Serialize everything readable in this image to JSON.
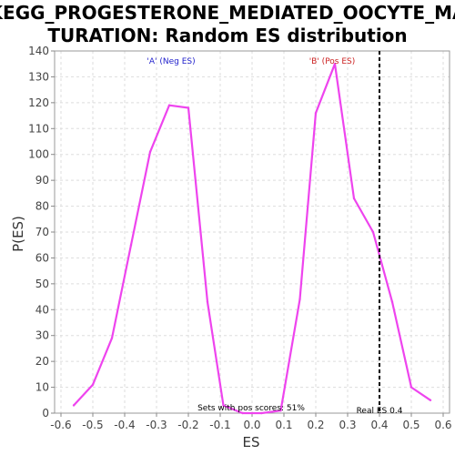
{
  "chart_data": {
    "type": "line",
    "title_lines": [
      "KEGG_PROGESTERONE_MEDIATED_OOCYTE_MA",
      "TURATION: Random ES distribution"
    ],
    "xlabel": "ES",
    "ylabel": "P(ES)",
    "xlim": [
      -0.62,
      0.62
    ],
    "ylim": [
      0,
      140
    ],
    "x_ticks": [
      -0.6,
      -0.5,
      -0.4,
      -0.3,
      -0.2,
      -0.1,
      0.0,
      0.1,
      0.2,
      0.3,
      0.4,
      0.5,
      0.6
    ],
    "y_ticks": [
      0,
      10,
      20,
      30,
      40,
      50,
      60,
      70,
      80,
      90,
      100,
      110,
      120,
      130,
      140
    ],
    "grid": true,
    "series": [
      {
        "color": "#ee44ee",
        "x": [
          -0.56,
          -0.5,
          -0.44,
          -0.38,
          -0.32,
          -0.26,
          -0.2,
          -0.14,
          -0.09,
          -0.03,
          0.03,
          0.09,
          0.15,
          0.2,
          0.26,
          0.32,
          0.38,
          0.44,
          0.5,
          0.56
        ],
        "y": [
          3,
          11,
          29,
          65,
          101,
          119,
          118,
          43,
          3,
          0,
          0,
          1,
          44,
          116,
          135,
          83,
          70,
          43,
          10,
          5
        ]
      }
    ],
    "reference_line": {
      "x": 0.4,
      "color": "#000000",
      "label": "Real ES 0.4"
    },
    "annotations": {
      "neg_label": "'A' (Neg ES)",
      "neg_color": "#2222cc",
      "pos_label": "'B' (Pos ES)",
      "pos_color": "#cc2222",
      "sets_text": "Sets with pos scores: 51%"
    }
  }
}
